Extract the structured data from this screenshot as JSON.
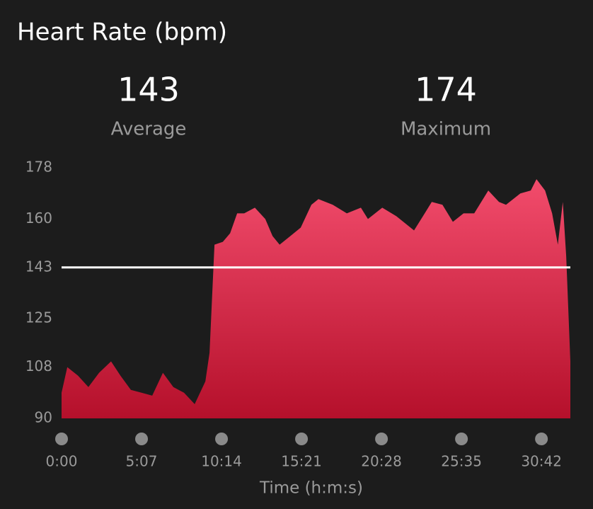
{
  "chart_data": {
    "type": "area",
    "title": "Heart Rate (bpm)",
    "stats": [
      {
        "value": 143,
        "label": "Average"
      },
      {
        "value": 174,
        "label": "Maximum"
      }
    ],
    "x_label": "Time (h:m:s)",
    "x": [
      0,
      22,
      63,
      103,
      144,
      190,
      226,
      266,
      307,
      348,
      389,
      429,
      470,
      511,
      552,
      568,
      587,
      619,
      647,
      674,
      701,
      742,
      782,
      810,
      837,
      878,
      918,
      959,
      986,
      1041,
      1095,
      1149,
      1176,
      1231,
      1285,
      1353,
      1394,
      1421,
      1462,
      1502,
      1543,
      1584,
      1638,
      1679,
      1706,
      1761,
      1801,
      1823,
      1856,
      1883,
      1905,
      1924,
      1937,
      1953
    ],
    "values": [
      99,
      108,
      105,
      101,
      106,
      110,
      105,
      100,
      99,
      98,
      106,
      101,
      99,
      95,
      103,
      113,
      151,
      152,
      155,
      162,
      162,
      164,
      160,
      154,
      151,
      154,
      157,
      165,
      167,
      165,
      162,
      164,
      160,
      164,
      161,
      156,
      162,
      166,
      165,
      159,
      162,
      162,
      170,
      166,
      165,
      169,
      170,
      174,
      170,
      162,
      151,
      166,
      147,
      110
    ],
    "color_top": "#f24c6c",
    "color_bottom": "#b5102b",
    "xlim": [
      0,
      1953
    ],
    "xticks": [
      {
        "value": 0,
        "label": "0:00"
      },
      {
        "value": 307,
        "label": "5:07"
      },
      {
        "value": 614,
        "label": "10:14"
      },
      {
        "value": 921,
        "label": "15:21"
      },
      {
        "value": 1228,
        "label": "20:28"
      },
      {
        "value": 1535,
        "label": "25:35"
      },
      {
        "value": 1842,
        "label": "30:42"
      }
    ],
    "ylim": [
      90,
      178
    ],
    "yticks": [
      90,
      108,
      125,
      143,
      160,
      178
    ]
  }
}
